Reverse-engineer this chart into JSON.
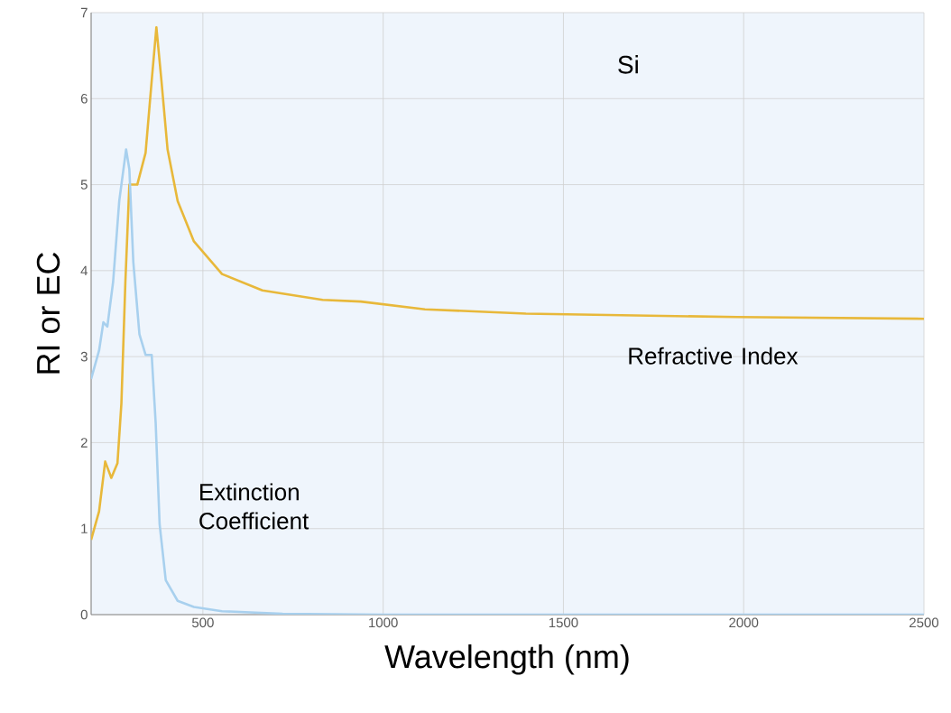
{
  "chart_data": {
    "type": "line",
    "title": "Si",
    "xlabel": "Wavelength (nm)",
    "ylabel": "RI or EC",
    "xlim": [
      190,
      2500
    ],
    "ylim": [
      0,
      7
    ],
    "xticks": [
      500,
      1000,
      1500,
      2000,
      2500
    ],
    "yticks": [
      0,
      1,
      2,
      3,
      4,
      5,
      6,
      7
    ],
    "grid": true,
    "marker": "none",
    "line_style": "solid",
    "series": [
      {
        "name": "Refractive Index",
        "color": "#e8b83a",
        "x": [
          190,
          212,
          229,
          246,
          263,
          274,
          285,
          296,
          318,
          341,
          358,
          371,
          385,
          402,
          430,
          475,
          553,
          665,
          832,
          938,
          1116,
          1396,
          1982,
          2500
        ],
        "values": [
          0.87,
          1.2,
          1.78,
          1.59,
          1.76,
          2.46,
          3.87,
          5.0,
          5.0,
          5.37,
          6.21,
          6.83,
          6.21,
          5.41,
          4.81,
          4.34,
          3.96,
          3.77,
          3.66,
          3.64,
          3.55,
          3.5,
          3.46,
          3.44
        ]
      },
      {
        "name": "Extinction Coefficient",
        "color": "#a8d0ee",
        "x": [
          190,
          212,
          224,
          235,
          251,
          268,
          287,
          296,
          307,
          324,
          341,
          358,
          369,
          380,
          397,
          430,
          475,
          553,
          721,
          1000,
          2500
        ],
        "values": [
          2.74,
          3.07,
          3.4,
          3.35,
          3.87,
          4.81,
          5.41,
          5.18,
          4.1,
          3.26,
          3.02,
          3.02,
          2.23,
          1.05,
          0.4,
          0.16,
          0.09,
          0.04,
          0.01,
          0,
          0
        ]
      }
    ]
  }
}
